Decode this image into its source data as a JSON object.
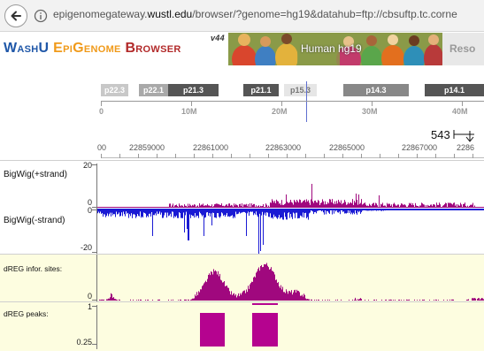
{
  "browser": {
    "url_prefix": "epigenomegateway.",
    "url_domain": "wustl.edu",
    "url_rest": "/browser/?genome=hg19&datahub=ftp://cbsuftp.tc.corne"
  },
  "app": {
    "logo_part1": "WashU ",
    "logo_part2": "EpiGenome ",
    "logo_part3": "Browser",
    "version": "v44",
    "banner_title": "Human hg19",
    "resources_label": "Reso"
  },
  "ideogram": {
    "bands": [
      {
        "label": "p22.3",
        "color": "#c8c8c8",
        "text_color": "#ffffff"
      },
      {
        "label": "",
        "color": "#ffffff",
        "text_color": "#ffffff"
      },
      {
        "label": "p22.1",
        "color": "#a9a9a9",
        "text_color": "#ffffff"
      },
      {
        "label": "p21.3",
        "color": "#555555",
        "text_color": "#ffffff"
      },
      {
        "label": "",
        "color": "#ffffff",
        "text_color": "#ffffff"
      },
      {
        "label": "p21.1",
        "color": "#555555",
        "text_color": "#ffffff"
      },
      {
        "label": "",
        "color": "#ffffff",
        "text_color": "#ffffff"
      },
      {
        "label": "p15.3",
        "color": "#e6e6e6",
        "text_color": "#777777"
      },
      {
        "label": "",
        "color": "#ffffff",
        "text_color": "#ffffff"
      },
      {
        "label": "p14.3",
        "color": "#888888",
        "text_color": "#ffffff"
      },
      {
        "label": "",
        "color": "#ffffff",
        "text_color": "#ffffff"
      },
      {
        "label": "p14.1",
        "color": "#555555",
        "text_color": "#ffffff"
      }
    ],
    "mb_labels": [
      "0",
      "10M",
      "20M",
      "30M",
      "40M"
    ]
  },
  "zoom": {
    "width_label": "543"
  },
  "kb_ruler": {
    "labels": [
      "00",
      "22859000",
      "22861000",
      "22863000",
      "22865000",
      "22867000",
      "2286"
    ]
  },
  "tracks": {
    "plus": {
      "label": "BigWig(+strand)",
      "scale_max": "20",
      "scale_min": "0",
      "color": "#a0087e"
    },
    "minus": {
      "label": "BigWig(-strand)",
      "scale_max": "0",
      "scale_min": "-20",
      "color": "#1a1ad4"
    },
    "dreg_sites": {
      "label": "dREG infor. sites:",
      "scale_min": "0",
      "color": "#a0087e",
      "bg": "#fdfde0"
    },
    "dreg_peaks": {
      "label": "dREG peaks:",
      "scale_max": "1",
      "scale_min": "0.25",
      "color": "#b5038f",
      "bg": "#fdfde0"
    }
  },
  "colors": {
    "accent_magenta": "#a0087e",
    "accent_blue": "#1a1ad4"
  }
}
